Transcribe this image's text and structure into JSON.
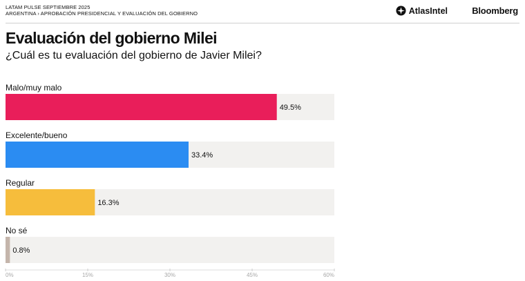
{
  "header": {
    "kicker_line1": "LATAM PULSE SEPTIEMBRE 2025",
    "kicker_line2": "ARGENTINA › APROBACIÓN PRESIDENCIAL Y EVALUACIÓN DEL GOBIERNO",
    "brand_atlas": "AtlasIntel",
    "brand_bloomberg": "Bloomberg"
  },
  "title": "Evaluación del gobierno Milei",
  "subtitle": "¿Cuál es tu evaluación del gobierno de Javier Milei?",
  "chart_data": {
    "type": "bar",
    "orientation": "horizontal",
    "title": "Evaluación del gobierno Milei",
    "subtitle": "¿Cuál es tu evaluación del gobierno de Javier Milei?",
    "categories": [
      "Malo/muy malo",
      "Excelente/bueno",
      "Regular",
      "No sé"
    ],
    "values": [
      49.5,
      33.4,
      16.3,
      0.8
    ],
    "value_labels": [
      "49.5%",
      "33.4%",
      "16.3%",
      "0.8%"
    ],
    "colors": [
      "#e91e5a",
      "#2b8cf2",
      "#f6bd3c",
      "#c4b5ab"
    ],
    "track_color": "#f2f1ef",
    "xlim": [
      0,
      60
    ],
    "x_ticks": [
      0,
      15,
      30,
      45,
      60
    ],
    "x_tick_labels": [
      "0%",
      "15%",
      "30%",
      "45%",
      "60%"
    ],
    "grid": false,
    "legend": "none"
  }
}
